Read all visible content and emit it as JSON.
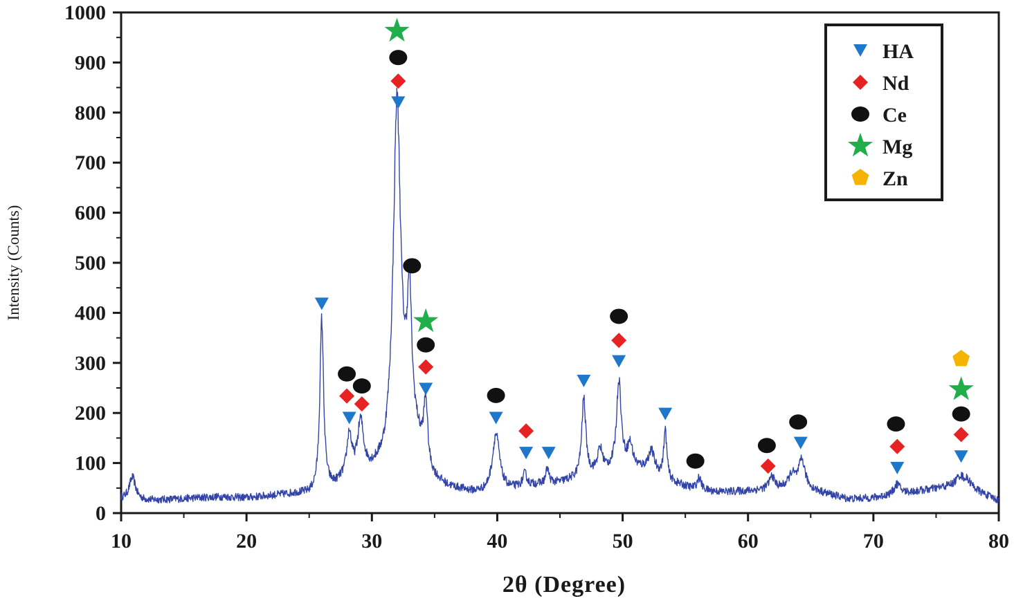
{
  "chart_data": {
    "type": "line",
    "xlabel": "2θ (Degree)",
    "ylabel": "Intensity (Counts)",
    "xlim": [
      10,
      80
    ],
    "ylim": [
      0,
      1000
    ],
    "x_ticks": [
      10,
      20,
      30,
      40,
      50,
      60,
      70,
      80
    ],
    "y_ticks": [
      0,
      100,
      200,
      300,
      400,
      500,
      600,
      700,
      800,
      900,
      1000
    ],
    "grid": false,
    "legend_position": "top-right",
    "colors": {
      "line": "#3344a8",
      "HA": "#1f77c9",
      "Nd": "#e62222",
      "Ce": "#111111",
      "Mg": "#1fae4a",
      "Zn": "#f5b400",
      "axis": "#1a1a1a"
    },
    "baseline": [
      [
        10,
        28
      ],
      [
        12,
        25
      ],
      [
        14,
        27
      ],
      [
        16,
        30
      ],
      [
        18,
        32
      ],
      [
        20,
        30
      ],
      [
        22,
        34
      ],
      [
        24,
        38
      ],
      [
        25,
        36
      ],
      [
        27,
        50
      ],
      [
        28,
        70
      ],
      [
        30,
        80
      ],
      [
        31,
        90
      ],
      [
        32.8,
        180
      ],
      [
        33.5,
        150
      ],
      [
        34.5,
        70
      ],
      [
        36,
        50
      ],
      [
        38,
        40
      ],
      [
        39,
        38
      ],
      [
        41,
        45
      ],
      [
        43,
        55
      ],
      [
        45,
        60
      ],
      [
        46.5,
        68
      ],
      [
        48,
        78
      ],
      [
        50,
        90
      ],
      [
        52,
        85
      ],
      [
        54,
        60
      ],
      [
        56,
        45
      ],
      [
        58,
        42
      ],
      [
        60,
        44
      ],
      [
        62,
        48
      ],
      [
        64,
        52
      ],
      [
        66,
        40
      ],
      [
        68,
        28
      ],
      [
        70,
        30
      ],
      [
        72,
        38
      ],
      [
        74,
        45
      ],
      [
        76,
        52
      ],
      [
        78,
        45
      ],
      [
        80,
        25
      ]
    ],
    "peaks": [
      [
        10.9,
        45,
        0.3
      ],
      [
        26.0,
        340,
        0.18
      ],
      [
        28.2,
        80,
        0.22
      ],
      [
        29.1,
        100,
        0.28
      ],
      [
        32.0,
        680,
        0.35
      ],
      [
        33.0,
        240,
        0.2
      ],
      [
        34.3,
        130,
        0.2
      ],
      [
        39.9,
        115,
        0.35
      ],
      [
        42.2,
        25,
        0.2
      ],
      [
        44.0,
        30,
        0.15
      ],
      [
        46.9,
        155,
        0.2
      ],
      [
        48.2,
        45,
        0.25
      ],
      [
        49.7,
        175,
        0.22
      ],
      [
        50.6,
        45,
        0.25
      ],
      [
        52.3,
        40,
        0.3
      ],
      [
        53.4,
        95,
        0.15
      ],
      [
        56.1,
        25,
        0.2
      ],
      [
        61.9,
        25,
        0.25
      ],
      [
        63.5,
        25,
        0.3
      ],
      [
        64.3,
        55,
        0.3
      ],
      [
        71.9,
        20,
        0.3
      ],
      [
        76.9,
        22,
        0.4
      ],
      [
        77.5,
        15,
        0.4
      ]
    ],
    "legend": [
      {
        "label": "HA",
        "shape": "triangle-down"
      },
      {
        "label": "Nd",
        "shape": "diamond"
      },
      {
        "label": "Ce",
        "shape": "ellipse"
      },
      {
        "label": "Mg",
        "shape": "star"
      },
      {
        "label": "Zn",
        "shape": "pentagon"
      }
    ],
    "markers": [
      {
        "x": 26.0,
        "y": 418,
        "phase": "HA"
      },
      {
        "x": 28.2,
        "y": 190,
        "phase": "HA"
      },
      {
        "x": 28.0,
        "y": 234,
        "phase": "Nd"
      },
      {
        "x": 28.0,
        "y": 278,
        "phase": "Ce"
      },
      {
        "x": 29.2,
        "y": 218,
        "phase": "Nd"
      },
      {
        "x": 29.2,
        "y": 254,
        "phase": "Ce"
      },
      {
        "x": 32.1,
        "y": 820,
        "phase": "HA"
      },
      {
        "x": 32.1,
        "y": 863,
        "phase": "Nd"
      },
      {
        "x": 32.1,
        "y": 910,
        "phase": "Ce"
      },
      {
        "x": 32.0,
        "y": 963,
        "phase": "Mg"
      },
      {
        "x": 33.2,
        "y": 494,
        "phase": "Ce"
      },
      {
        "x": 34.3,
        "y": 248,
        "phase": "HA"
      },
      {
        "x": 34.3,
        "y": 292,
        "phase": "Nd"
      },
      {
        "x": 34.3,
        "y": 336,
        "phase": "Ce"
      },
      {
        "x": 34.3,
        "y": 383,
        "phase": "Mg"
      },
      {
        "x": 39.9,
        "y": 190,
        "phase": "HA"
      },
      {
        "x": 39.9,
        "y": 235,
        "phase": "Ce"
      },
      {
        "x": 42.3,
        "y": 120,
        "phase": "HA"
      },
      {
        "x": 42.3,
        "y": 164,
        "phase": "Nd"
      },
      {
        "x": 44.1,
        "y": 120,
        "phase": "HA"
      },
      {
        "x": 46.9,
        "y": 264,
        "phase": "HA"
      },
      {
        "x": 49.7,
        "y": 303,
        "phase": "HA"
      },
      {
        "x": 49.7,
        "y": 345,
        "phase": "Nd"
      },
      {
        "x": 49.7,
        "y": 393,
        "phase": "Ce"
      },
      {
        "x": 53.4,
        "y": 198,
        "phase": "HA"
      },
      {
        "x": 55.8,
        "y": 104,
        "phase": "Ce"
      },
      {
        "x": 61.6,
        "y": 94,
        "phase": "Nd"
      },
      {
        "x": 61.5,
        "y": 135,
        "phase": "Ce"
      },
      {
        "x": 64.2,
        "y": 140,
        "phase": "HA"
      },
      {
        "x": 64.0,
        "y": 182,
        "phase": "Ce"
      },
      {
        "x": 71.9,
        "y": 90,
        "phase": "HA"
      },
      {
        "x": 71.9,
        "y": 133,
        "phase": "Nd"
      },
      {
        "x": 71.8,
        "y": 178,
        "phase": "Ce"
      },
      {
        "x": 77.0,
        "y": 113,
        "phase": "HA"
      },
      {
        "x": 77.0,
        "y": 157,
        "phase": "Nd"
      },
      {
        "x": 77.0,
        "y": 198,
        "phase": "Ce"
      },
      {
        "x": 77.0,
        "y": 247,
        "phase": "Mg"
      },
      {
        "x": 77.0,
        "y": 308,
        "phase": "Zn"
      }
    ]
  }
}
